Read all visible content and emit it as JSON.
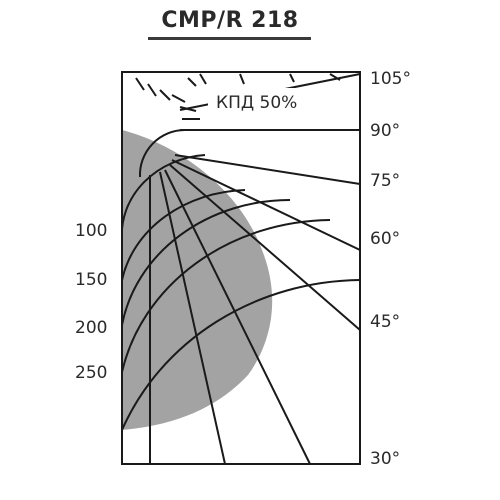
{
  "title": "CMP/R 218",
  "efficiency_label": "КПД 50%",
  "angle_labels": [
    "105°",
    "90°",
    "75°",
    "60°",
    "45°",
    "30°"
  ],
  "intensity_labels": [
    "100",
    "150",
    "200",
    "250"
  ],
  "colors": {
    "distribution_fill": "#a3a3a3",
    "grid_lines": "#1a1a1a",
    "text": "#2a2a2a"
  }
}
